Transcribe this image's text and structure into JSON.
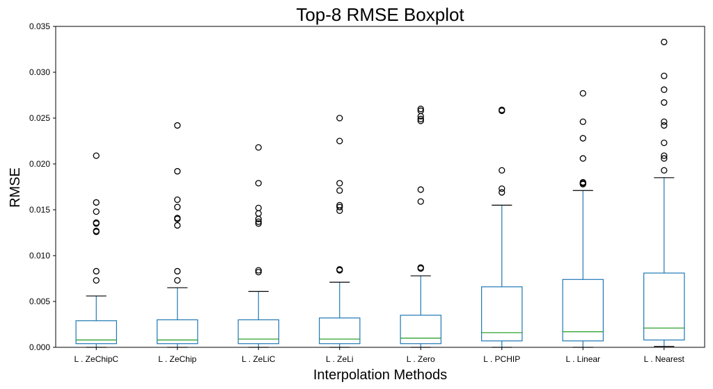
{
  "chart_data": {
    "type": "boxplot",
    "title": "Top-8 RMSE Boxplot",
    "xlabel": "Interpolation Methods",
    "ylabel": "RMSE",
    "ylim": [
      0,
      0.035
    ],
    "yticks": [
      "0.000",
      "0.005",
      "0.010",
      "0.015",
      "0.020",
      "0.025",
      "0.030",
      "0.035"
    ],
    "grid": false,
    "colors": {
      "box": "#1f77b4",
      "median": "#2ca02c",
      "cap": "#000000",
      "flier": "#000000"
    },
    "categories": [
      "L . ZeChipC",
      "L . ZeChip",
      "L . ZeLiC",
      "L . ZeLi",
      "L . Zero",
      "L . PCHIP",
      "L . Linear",
      "L . Nearest"
    ],
    "boxes": [
      {
        "label": "L . ZeChipC",
        "whislo": 0.0,
        "q1": 0.0004,
        "med": 0.0008,
        "q3": 0.0029,
        "whishi": 0.0056,
        "fliers": [
          0.0073,
          0.0083,
          0.0126,
          0.0127,
          0.0135,
          0.0136,
          0.0148,
          0.0158,
          0.0209
        ]
      },
      {
        "label": "L . ZeChip",
        "whislo": 0.0,
        "q1": 0.0004,
        "med": 0.0008,
        "q3": 0.003,
        "whishi": 0.0065,
        "fliers": [
          0.0073,
          0.0083,
          0.0133,
          0.014,
          0.0141,
          0.0153,
          0.0161,
          0.0192,
          0.0242
        ]
      },
      {
        "label": "L . ZeLiC",
        "whislo": 0.0,
        "q1": 0.0004,
        "med": 0.0009,
        "q3": 0.003,
        "whishi": 0.0061,
        "fliers": [
          0.0082,
          0.0084,
          0.0135,
          0.0137,
          0.014,
          0.0146,
          0.0152,
          0.0179,
          0.0218
        ]
      },
      {
        "label": "L . ZeLi",
        "whislo": 0.0,
        "q1": 0.0004,
        "med": 0.0009,
        "q3": 0.0032,
        "whishi": 0.0071,
        "fliers": [
          0.0084,
          0.0085,
          0.0149,
          0.0153,
          0.0155,
          0.0171,
          0.0179,
          0.0225,
          0.025
        ]
      },
      {
        "label": "L . Zero",
        "whislo": 0.0,
        "q1": 0.0004,
        "med": 0.001,
        "q3": 0.0035,
        "whishi": 0.0078,
        "fliers": [
          0.0086,
          0.0087,
          0.0159,
          0.0172,
          0.0247,
          0.0249,
          0.0252,
          0.0258,
          0.026
        ]
      },
      {
        "label": "L . PCHIP",
        "whislo": 0.0,
        "q1": 0.0007,
        "med": 0.0016,
        "q3": 0.0066,
        "whishi": 0.0155,
        "fliers": [
          0.0169,
          0.0173,
          0.0193,
          0.0258,
          0.0259
        ]
      },
      {
        "label": "L . Linear",
        "whislo": 0.0,
        "q1": 0.0007,
        "med": 0.0017,
        "q3": 0.0074,
        "whishi": 0.0171,
        "fliers": [
          0.0178,
          0.0179,
          0.018,
          0.0206,
          0.0228,
          0.0246,
          0.0277
        ]
      },
      {
        "label": "L . Nearest",
        "whislo": 0.0001,
        "q1": 0.0008,
        "med": 0.0021,
        "q3": 0.0081,
        "whishi": 0.0185,
        "fliers": [
          0.0193,
          0.0206,
          0.0209,
          0.0223,
          0.0242,
          0.0246,
          0.0267,
          0.0281,
          0.0296,
          0.0333
        ]
      }
    ]
  }
}
